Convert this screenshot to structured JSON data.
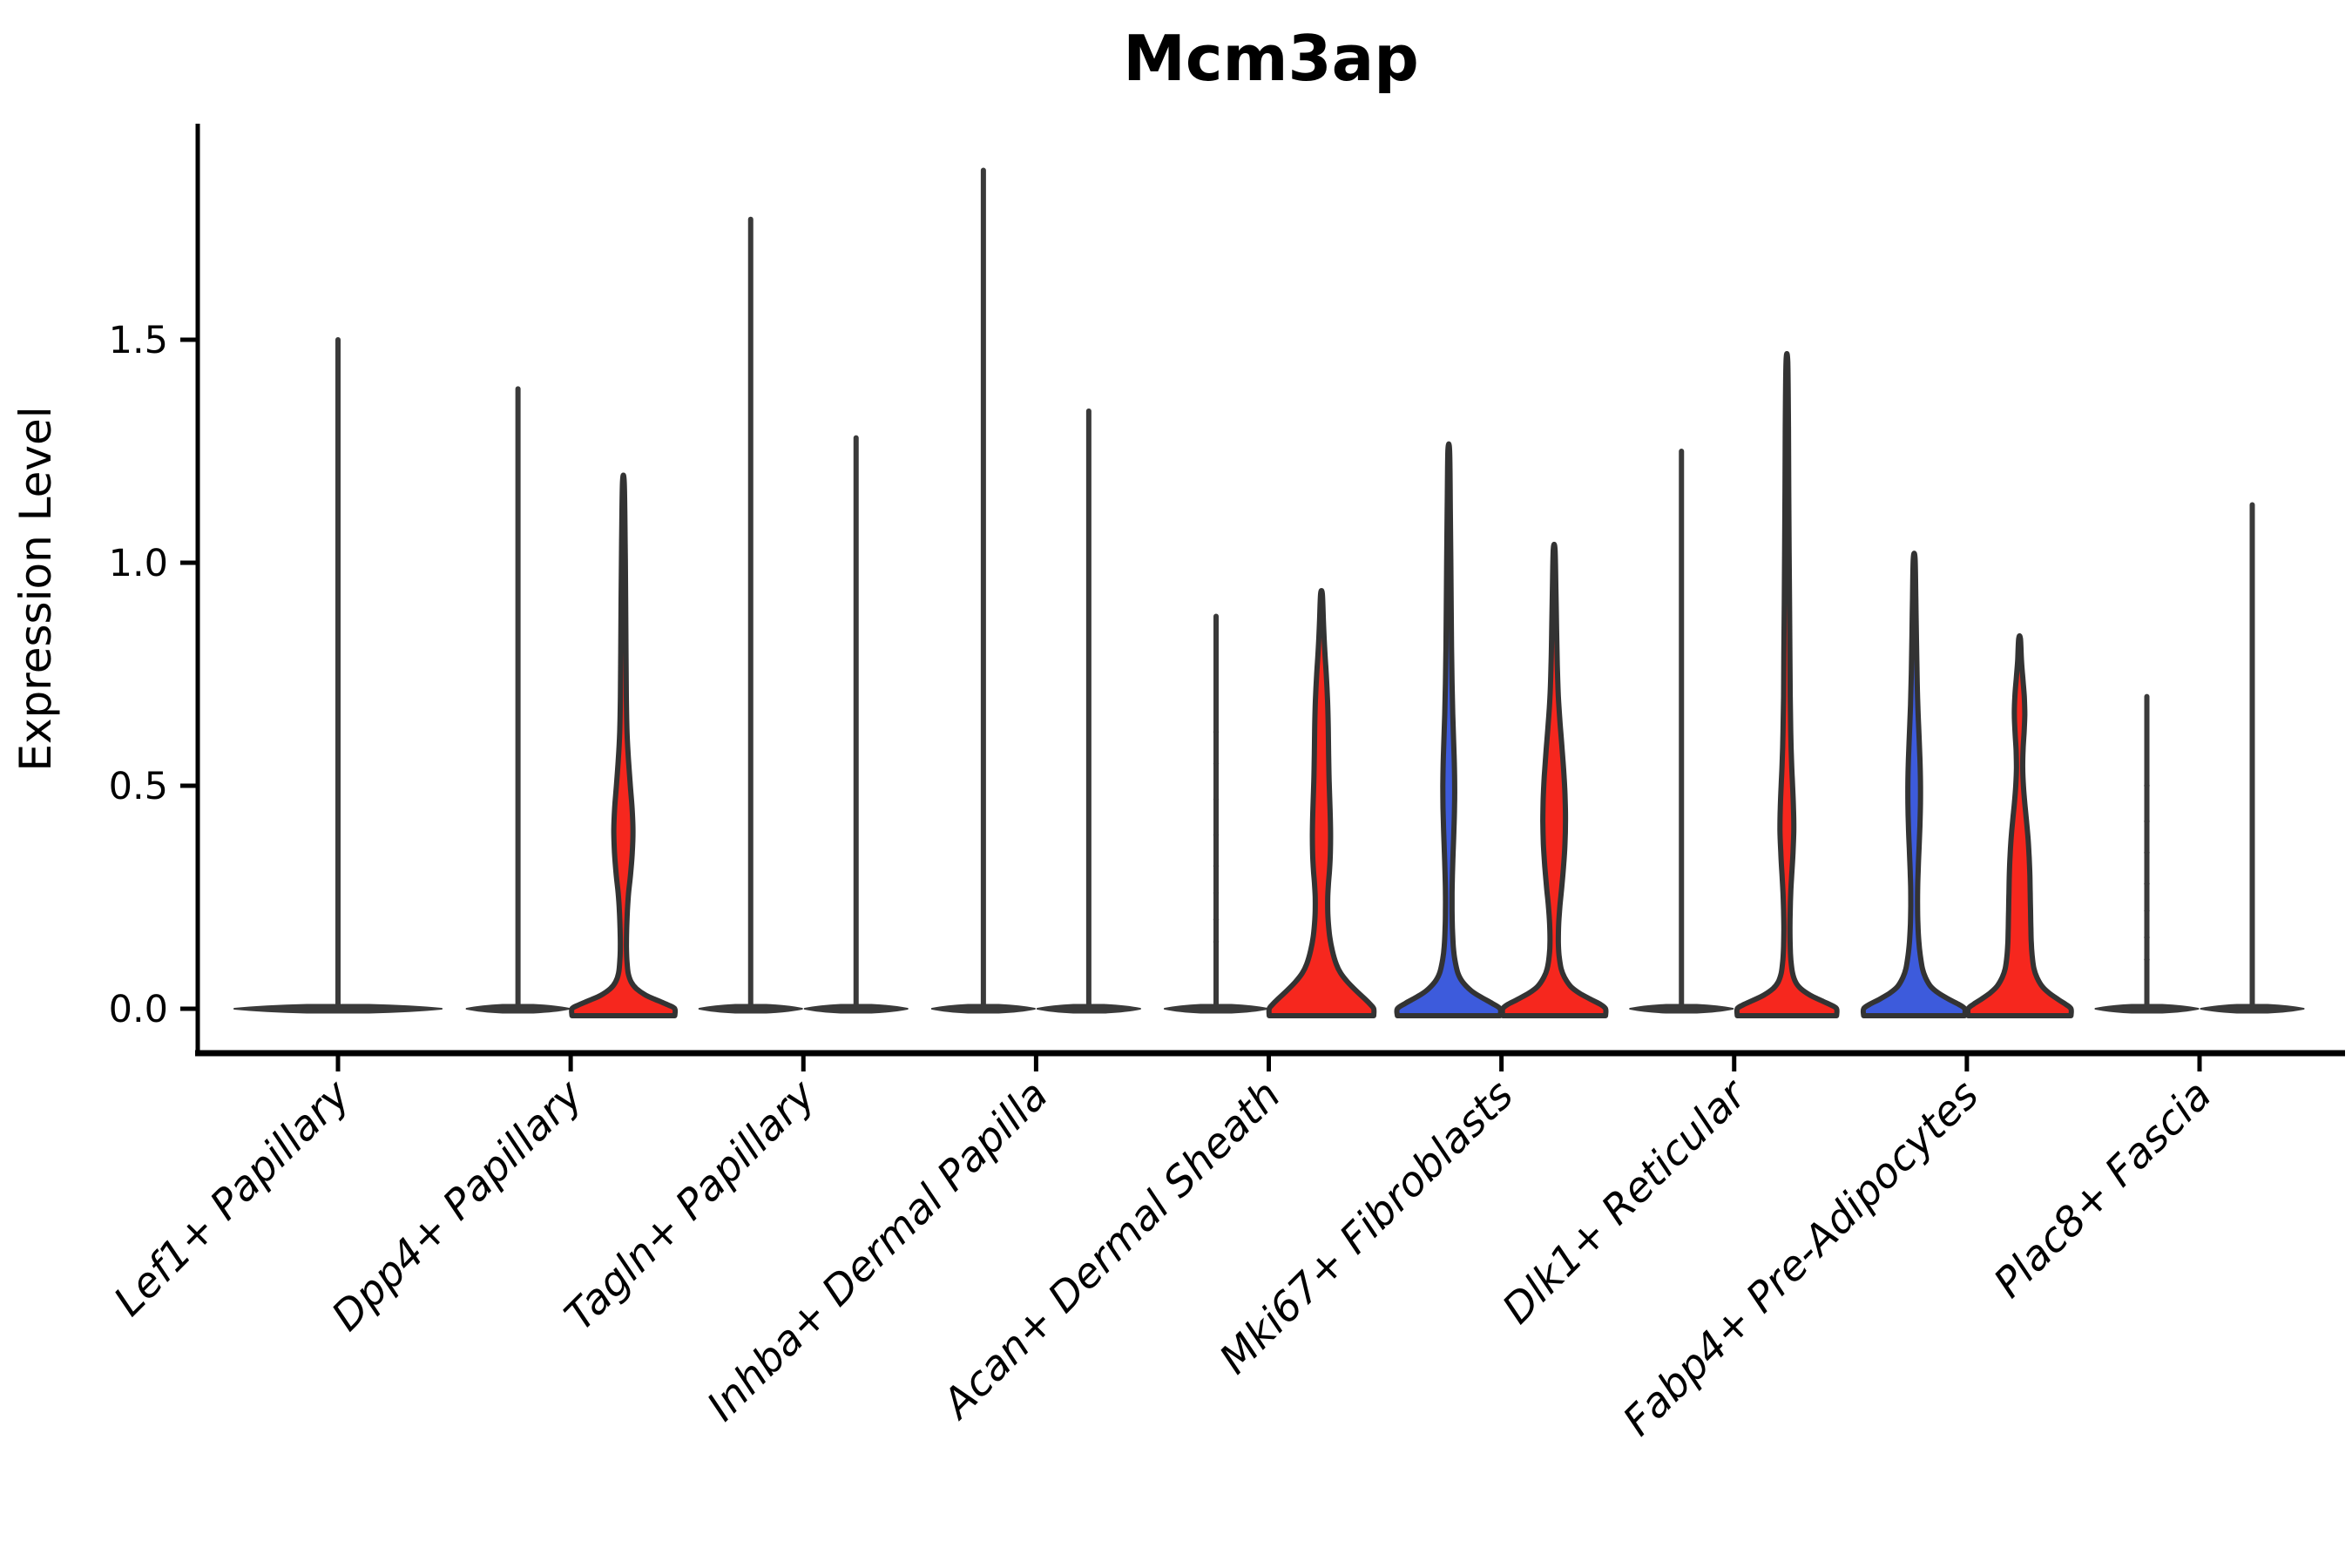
{
  "title": "Mcm3ap",
  "ylabel": "Expression Level",
  "chart_data": {
    "type": "violin",
    "title": "Mcm3ap",
    "xlabel": "",
    "ylabel": "Expression Level",
    "ylim": [
      -0.1,
      1.98
    ],
    "grid": false,
    "legend": "none",
    "yticks": [
      {
        "value": 0.0,
        "label": "0.0"
      },
      {
        "value": 0.5,
        "label": "0.5"
      },
      {
        "value": 1.0,
        "label": "1.0"
      },
      {
        "value": 1.5,
        "label": "1.5"
      }
    ],
    "categories": [
      "Lef1+ Papillary",
      "Dpp4+ Papillary",
      "Tagln+ Papillary",
      "Inhba+ Dermal Papilla",
      "Acan+ Dermal Sheath",
      "Mki67+ Fibroblasts",
      "Dlk1+ Reticular",
      "Fabp4+ Pre-Adipocytes",
      "Plac8+ Fascia"
    ],
    "colors": {
      "red": "#F6271E",
      "blue": "#3D5BDC",
      "dark": "#3A3A3A",
      "edge": "#333333"
    },
    "violins": [
      {
        "cat": 0,
        "side": "center",
        "kind": "spike",
        "max": 1.5
      },
      {
        "cat": 1,
        "side": "left",
        "kind": "spike",
        "max": 1.39
      },
      {
        "cat": 1,
        "side": "right",
        "kind": "shaped",
        "color": "red",
        "max": 1.18,
        "profile": [
          [
            1.18,
            1
          ],
          [
            1.05,
            2
          ],
          [
            0.92,
            2.6
          ],
          [
            0.8,
            3
          ],
          [
            0.7,
            3.4
          ],
          [
            0.62,
            4.2
          ],
          [
            0.56,
            5.8
          ],
          [
            0.5,
            8
          ],
          [
            0.45,
            10
          ],
          [
            0.4,
            11
          ],
          [
            0.35,
            10.2
          ],
          [
            0.3,
            8.2
          ],
          [
            0.26,
            6
          ],
          [
            0.22,
            4.6
          ],
          [
            0.18,
            3.8
          ],
          [
            0.14,
            3.5
          ],
          [
            0.11,
            4
          ],
          [
            0.08,
            5.5
          ],
          [
            0.06,
            9
          ],
          [
            0.045,
            15
          ],
          [
            0.03,
            26
          ],
          [
            0.018,
            40
          ],
          [
            0.008,
            52
          ],
          [
            0,
            59
          ]
        ]
      },
      {
        "cat": 2,
        "side": "left",
        "kind": "spike",
        "max": 1.77
      },
      {
        "cat": 2,
        "side": "right",
        "kind": "spike",
        "max": 1.28
      },
      {
        "cat": 3,
        "side": "left",
        "kind": "spike",
        "max": 1.88
      },
      {
        "cat": 3,
        "side": "right",
        "kind": "spike",
        "max": 1.34
      },
      {
        "cat": 4,
        "side": "left",
        "kind": "spike",
        "max": 0.88,
        "dots": [
          0.15,
          0.2,
          0.26,
          0.32,
          0.39,
          0.47,
          0.55,
          0.62
        ]
      },
      {
        "cat": 4,
        "side": "right",
        "kind": "shaped",
        "color": "red",
        "max": 0.93,
        "profile": [
          [
            0.93,
            1
          ],
          [
            0.87,
            2.2
          ],
          [
            0.81,
            3.6
          ],
          [
            0.75,
            5.5
          ],
          [
            0.69,
            7
          ],
          [
            0.63,
            7.8
          ],
          [
            0.57,
            8.2
          ],
          [
            0.51,
            8.8
          ],
          [
            0.45,
            9.8
          ],
          [
            0.4,
            10.4
          ],
          [
            0.35,
            10.2
          ],
          [
            0.31,
            9.2
          ],
          [
            0.28,
            8
          ],
          [
            0.25,
            7.2
          ],
          [
            0.22,
            7.2
          ],
          [
            0.19,
            8
          ],
          [
            0.16,
            9.6
          ],
          [
            0.13,
            12.5
          ],
          [
            0.1,
            17
          ],
          [
            0.08,
            22
          ],
          [
            0.06,
            30
          ],
          [
            0.04,
            40
          ],
          [
            0.02,
            51
          ],
          [
            0.01,
            56
          ],
          [
            0,
            60
          ]
        ]
      },
      {
        "cat": 5,
        "side": "left",
        "kind": "shaped",
        "color": "blue",
        "max": 1.25,
        "profile": [
          [
            1.25,
            1
          ],
          [
            1.12,
            1.8
          ],
          [
            1.0,
            2.4
          ],
          [
            0.9,
            2.8
          ],
          [
            0.81,
            3.2
          ],
          [
            0.73,
            3.8
          ],
          [
            0.66,
            4.6
          ],
          [
            0.6,
            5.6
          ],
          [
            0.55,
            6.4
          ],
          [
            0.5,
            6.8
          ],
          [
            0.45,
            6.6
          ],
          [
            0.4,
            5.9
          ],
          [
            0.35,
            5
          ],
          [
            0.3,
            4.2
          ],
          [
            0.26,
            3.8
          ],
          [
            0.22,
            3.8
          ],
          [
            0.18,
            4.2
          ],
          [
            0.14,
            5.2
          ],
          [
            0.11,
            7
          ],
          [
            0.08,
            10.5
          ],
          [
            0.06,
            16
          ],
          [
            0.04,
            26
          ],
          [
            0.025,
            38
          ],
          [
            0.012,
            50
          ],
          [
            0,
            59
          ]
        ]
      },
      {
        "cat": 5,
        "side": "right",
        "kind": "shaped",
        "color": "red",
        "max": 1.03,
        "profile": [
          [
            1.03,
            1
          ],
          [
            0.94,
            2
          ],
          [
            0.85,
            2.8
          ],
          [
            0.77,
            3.6
          ],
          [
            0.7,
            4.8
          ],
          [
            0.64,
            6.8
          ],
          [
            0.58,
            9.2
          ],
          [
            0.52,
            11.4
          ],
          [
            0.47,
            12.6
          ],
          [
            0.42,
            13
          ],
          [
            0.37,
            12.4
          ],
          [
            0.32,
            10.8
          ],
          [
            0.27,
            8.6
          ],
          [
            0.23,
            6.6
          ],
          [
            0.19,
            5.2
          ],
          [
            0.15,
            4.8
          ],
          [
            0.12,
            5.6
          ],
          [
            0.09,
            8
          ],
          [
            0.07,
            12
          ],
          [
            0.05,
            19
          ],
          [
            0.035,
            29
          ],
          [
            0.02,
            43
          ],
          [
            0.01,
            53
          ],
          [
            0,
            59
          ]
        ]
      },
      {
        "cat": 6,
        "side": "left",
        "kind": "spike",
        "max": 1.25
      },
      {
        "cat": 6,
        "side": "right",
        "kind": "shaped",
        "color": "red",
        "max": 1.45,
        "profile": [
          [
            1.45,
            1
          ],
          [
            1.3,
            1.8
          ],
          [
            1.16,
            2.2
          ],
          [
            1.03,
            2.6
          ],
          [
            0.91,
            3
          ],
          [
            0.8,
            3.4
          ],
          [
            0.7,
            3.8
          ],
          [
            0.62,
            4.4
          ],
          [
            0.55,
            5.4
          ],
          [
            0.5,
            6.6
          ],
          [
            0.45,
            7.6
          ],
          [
            0.4,
            7.9
          ],
          [
            0.35,
            7
          ],
          [
            0.3,
            5.6
          ],
          [
            0.26,
            4.4
          ],
          [
            0.22,
            3.8
          ],
          [
            0.18,
            3.5
          ],
          [
            0.14,
            3.8
          ],
          [
            0.11,
            4.6
          ],
          [
            0.08,
            6.5
          ],
          [
            0.06,
            10
          ],
          [
            0.045,
            16
          ],
          [
            0.03,
            27
          ],
          [
            0.018,
            40
          ],
          [
            0.008,
            51
          ],
          [
            0,
            57
          ]
        ]
      },
      {
        "cat": 7,
        "side": "left",
        "kind": "shaped",
        "color": "blue",
        "max": 1.01,
        "profile": [
          [
            1.01,
            1
          ],
          [
            0.92,
            1.9
          ],
          [
            0.83,
            2.6
          ],
          [
            0.75,
            3.3
          ],
          [
            0.68,
            4.2
          ],
          [
            0.62,
            5.4
          ],
          [
            0.56,
            6.6
          ],
          [
            0.51,
            7.2
          ],
          [
            0.46,
            7.2
          ],
          [
            0.41,
            6.6
          ],
          [
            0.36,
            5.6
          ],
          [
            0.31,
            4.6
          ],
          [
            0.27,
            4
          ],
          [
            0.23,
            3.9
          ],
          [
            0.19,
            4.3
          ],
          [
            0.15,
            5.4
          ],
          [
            0.12,
            7
          ],
          [
            0.09,
            9.5
          ],
          [
            0.07,
            13
          ],
          [
            0.05,
            19
          ],
          [
            0.035,
            28
          ],
          [
            0.02,
            41
          ],
          [
            0.01,
            51
          ],
          [
            0,
            58
          ]
        ]
      },
      {
        "cat": 7,
        "side": "right",
        "kind": "shaped",
        "color": "red",
        "max": 0.83,
        "profile": [
          [
            0.83,
            1
          ],
          [
            0.78,
            2.2
          ],
          [
            0.74,
            3.8
          ],
          [
            0.7,
            5.4
          ],
          [
            0.66,
            6
          ],
          [
            0.62,
            5.2
          ],
          [
            0.58,
            4
          ],
          [
            0.54,
            3.6
          ],
          [
            0.5,
            4.4
          ],
          [
            0.46,
            6
          ],
          [
            0.42,
            8
          ],
          [
            0.38,
            9.8
          ],
          [
            0.34,
            11
          ],
          [
            0.3,
            11.8
          ],
          [
            0.26,
            12.2
          ],
          [
            0.22,
            12.6
          ],
          [
            0.18,
            13
          ],
          [
            0.15,
            13.4
          ],
          [
            0.12,
            14.4
          ],
          [
            0.09,
            16.5
          ],
          [
            0.07,
            20
          ],
          [
            0.05,
            26
          ],
          [
            0.035,
            34
          ],
          [
            0.02,
            45
          ],
          [
            0.01,
            53
          ],
          [
            0,
            59
          ]
        ]
      },
      {
        "cat": 8,
        "side": "left",
        "kind": "spike",
        "max": 0.7,
        "dots": [
          0.11,
          0.16,
          0.22,
          0.28,
          0.35,
          0.42,
          0.5
        ]
      },
      {
        "cat": 8,
        "side": "right",
        "kind": "spike",
        "max": 1.13
      }
    ]
  }
}
